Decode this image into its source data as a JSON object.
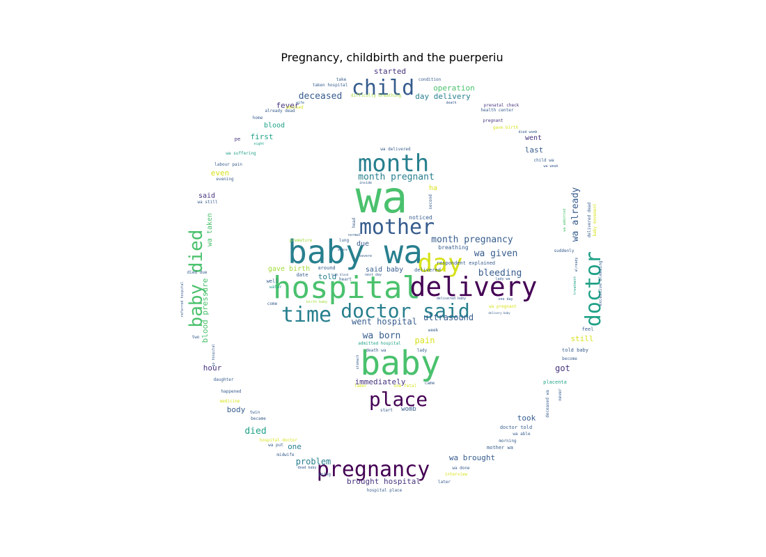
{
  "figure": {
    "title": "Pregnancy, childbirth and the puerperiu"
  },
  "palette": {
    "v0": "#440154",
    "v1": "#46327e",
    "v2": "#365c8d",
    "v3": "#277f8e",
    "v4": "#1fa187",
    "v5": "#4ac16d",
    "v6": "#a0da39",
    "v7": "#d6e21a"
  },
  "words": {
    "wa": "wa",
    "baby_wa": "baby wa",
    "hospital": "hospital",
    "delivery": "delivery",
    "baby": "baby",
    "month": "month",
    "mother": "mother",
    "day": "day",
    "time": "time",
    "doctor_said": "doctor said",
    "child": "child",
    "pregnancy": "pregnancy",
    "place": "place",
    "doctor": "doctor",
    "baby_died": "baby died",
    "month_pregnant": "month pregnant",
    "month_pregnancy": "month pregnancy",
    "wa_given": "wa given",
    "bleeding": "bleeding",
    "gave_birth": "gave birth",
    "said_baby": "said baby",
    "told": "told",
    "due": "due",
    "went_hospital": "went hospital",
    "ultrasound": "ultrasound",
    "wa_born": "wa born",
    "pain": "pain",
    "immediately": "immediately",
    "wa_already": "wa already",
    "deceased": "deceased",
    "day_delivery": "day delivery",
    "operation": "operation",
    "started": "started",
    "fever": "fever",
    "blood": "blood",
    "first": "first",
    "even": "even",
    "said": "said",
    "wa_taken": "wa taken",
    "blood_pressure": "blood pressure",
    "hour": "hour",
    "body": "body",
    "died": "died",
    "one": "one",
    "problem": "problem",
    "brought_hospital": "brought hospital",
    "wa_brought": "wa brought",
    "took": "took",
    "got": "got",
    "still": "still",
    "last": "last",
    "went": "went",
    "womb": "womb",
    "noticed": "noticed",
    "breathing": "breathing",
    "respondent_explained": "respondent explained",
    "delivered": "delivered",
    "heart": "heart",
    "around": "around",
    "date": "date",
    "well": "well",
    "come": "come",
    "water": "water",
    "feel": "feel",
    "told_baby": "told baby",
    "become": "become",
    "placenta": "placenta",
    "deceased_wa": "deceased wa",
    "never": "never",
    "doctor_told": "doctor told",
    "wa_able": "wa able",
    "morning": "morning",
    "mother_wa": "mother wa",
    "wa_done": "wa done",
    "later": "later",
    "interview": "interview",
    "hospital_place": "hospital place",
    "going": "going",
    "dead_baby": "dead baby",
    "midwife": "midwife",
    "wa_put": "wa put",
    "hospital_doctor": "hospital doctor",
    "became": "became",
    "twin": "twin",
    "medicine": "medicine",
    "happened": "happened",
    "daughter": "daughter",
    "go_hospital": "go hospital",
    "two": "two",
    "died_due": "died due",
    "wa_still": "wa still",
    "evening": "evening",
    "labour_pain": "labour pain",
    "wa_suffering": "wa suffering",
    "night": "night",
    "pe": "pe",
    "home": "home",
    "already_dead": "already dead",
    "advised": "advised",
    "wife": "wife",
    "taken_hospital": "taken hospital",
    "take": "take",
    "difficulty_breathing": "difficulty breathing",
    "condition": "condition",
    "death": "death",
    "prenatal_check": "prenatal check",
    "health_center": "health center",
    "pregnant": "pregnant",
    "gave_birth2": "gave birth",
    "died_womb": "died womb",
    "child_wa": "child wa",
    "wa_weak": "wa weak",
    "suddenly": "suddenly",
    "wa_admitted": "wa admitted",
    "delivered_dead": "delivered dead",
    "baby_movement": "baby movement",
    "treatment": "treatment",
    "already": "already",
    "excessive_bleeding": "excessive bleeding",
    "admitted_hospital": "admitted hospital",
    "death_wa": "death wa",
    "lady": "lady",
    "stomach": "stomach",
    "week": "week",
    "start": "start",
    "came": "came",
    "labor": "labor",
    "one_fetal": "one fetal",
    "wa_delivered": "wa delivered",
    "inside": "inside",
    "head": "head",
    "ha": "ha",
    "second": "second",
    "normal": "normal",
    "premature": "premature",
    "lung": "lung",
    "anyone": "anyone",
    "severe": "severe",
    "delivered_baby": "delivered baby",
    "one_day": "one day",
    "wa_pregnant": "wa pregnant",
    "delivery_baby": "delivery baby",
    "lady_wa": "lady wa",
    "birth_baby": "birth baby",
    "high_blood": "high blood",
    "next_day": "next day",
    "referred_hospital": "referred hospital"
  }
}
